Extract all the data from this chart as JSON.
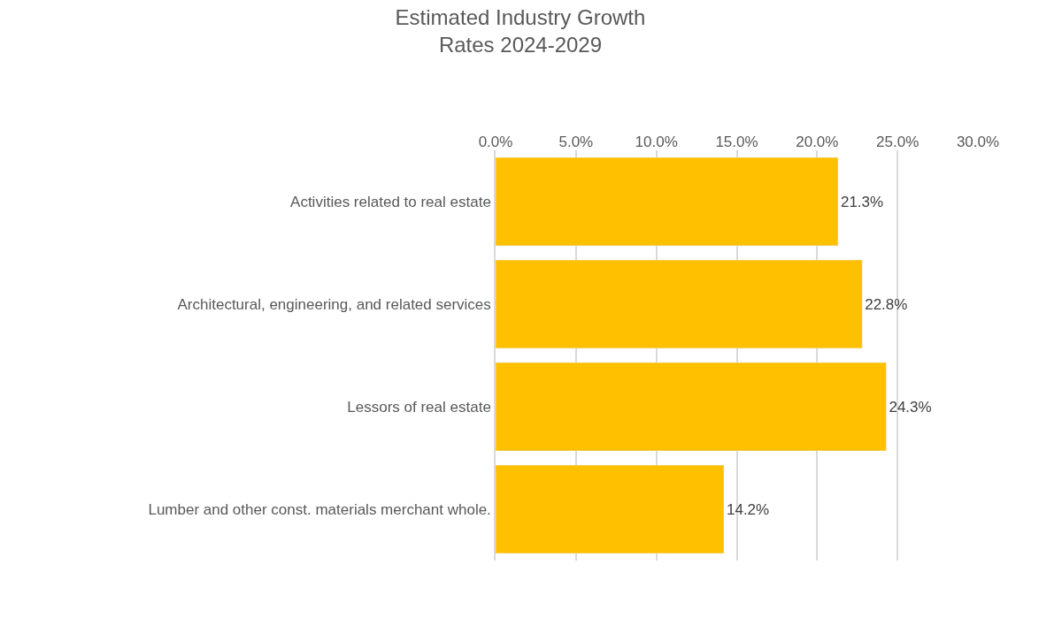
{
  "chart_data": {
    "type": "bar",
    "orientation": "horizontal",
    "title": "Estimated Industry Growth\nRates 2024-2029",
    "categories": [
      "Activities related to real estate",
      "Architectural, engineering, and related services",
      "Lessors of real estate",
      "Lumber and other const. materials merchant whole."
    ],
    "values": [
      21.3,
      22.8,
      24.3,
      14.2
    ],
    "value_labels": [
      "21.3%",
      "22.8%",
      "24.3%",
      "14.2%"
    ],
    "color": "#ffc000",
    "xlim": [
      0,
      30
    ],
    "xticks": [
      {
        "value": 0,
        "label": "0.0%"
      },
      {
        "value": 5,
        "label": "5.0%"
      },
      {
        "value": 10,
        "label": "10.0%"
      },
      {
        "value": 15,
        "label": "15.0%"
      },
      {
        "value": 20,
        "label": "20.0%"
      },
      {
        "value": 25,
        "label": "25.0%"
      },
      {
        "value": 30,
        "label": "30.0%"
      }
    ],
    "grid": "x",
    "legend": false
  }
}
